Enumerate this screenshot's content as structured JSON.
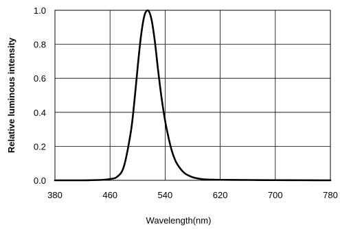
{
  "chart_data": {
    "type": "line",
    "title": "",
    "xlabel": "Wavelength(nm)",
    "ylabel": "Relative luminous intensity",
    "xlim": [
      380,
      780
    ],
    "ylim": [
      0,
      1.0
    ],
    "x_ticks": [
      380,
      460,
      540,
      620,
      700,
      780
    ],
    "x_tick_labels": [
      "380",
      "460",
      "540",
      "620",
      "700",
      "780"
    ],
    "y_ticks": [
      0,
      0.2,
      0.4,
      0.6,
      0.8,
      1.0
    ],
    "y_tick_labels": [
      "0.0",
      "0.2",
      "0.4",
      "0.6",
      "0.8",
      "1.0"
    ],
    "grid": true,
    "line_color": "#000000",
    "series": [
      {
        "x": [
          380,
          420,
          450,
          460,
          470,
          480,
          490,
          495,
          500,
          505,
          510,
          515,
          520,
          525,
          530,
          535,
          540,
          545,
          550,
          555,
          560,
          565,
          570,
          580,
          590,
          600,
          620,
          660,
          700,
          740,
          780
        ],
        "y": [
          0.0,
          0.0,
          0.003,
          0.008,
          0.02,
          0.08,
          0.28,
          0.45,
          0.66,
          0.85,
          0.97,
          1.0,
          0.95,
          0.82,
          0.64,
          0.48,
          0.35,
          0.25,
          0.17,
          0.115,
          0.08,
          0.055,
          0.037,
          0.018,
          0.009,
          0.005,
          0.003,
          0.002,
          0.001,
          0.0005,
          0.0
        ]
      }
    ]
  }
}
